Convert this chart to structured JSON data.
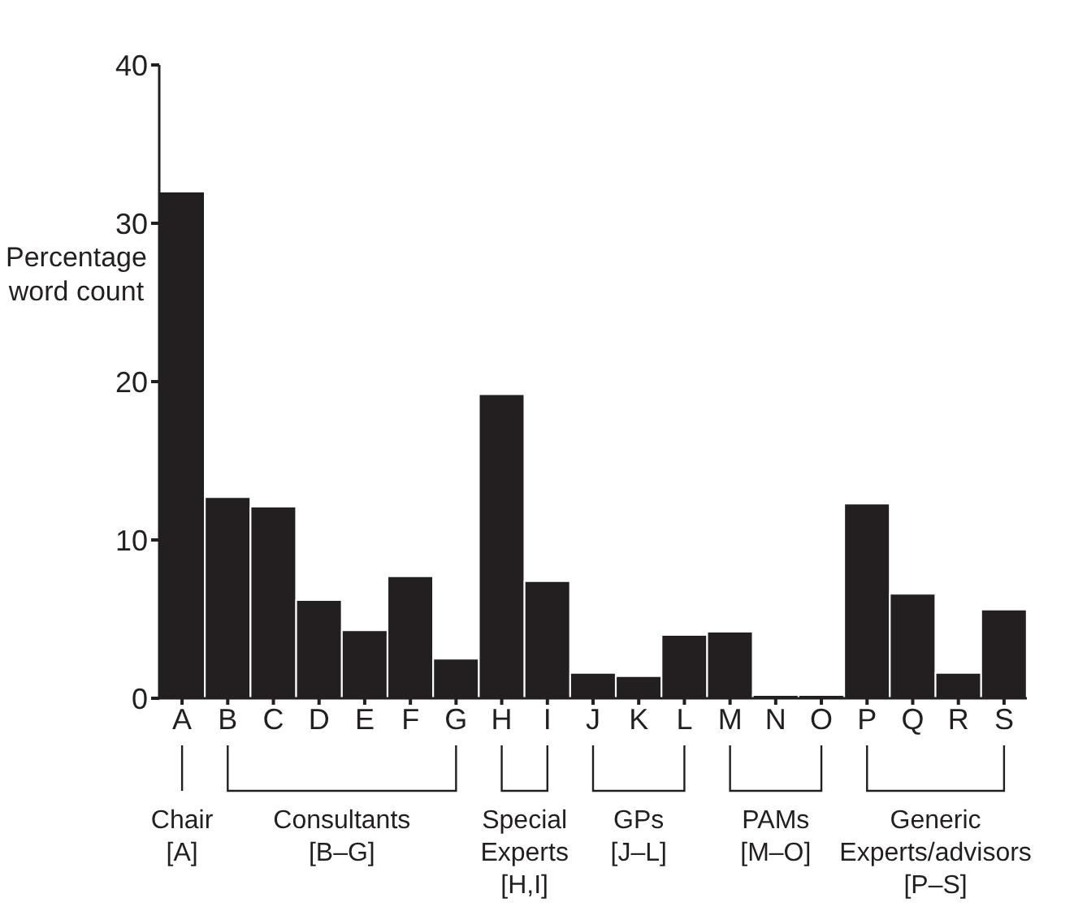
{
  "chart_data": {
    "type": "bar",
    "ylabel": "Percentage word count",
    "categories": [
      "A",
      "B",
      "C",
      "D",
      "E",
      "F",
      "G",
      "H",
      "I",
      "J",
      "K",
      "L",
      "M",
      "N",
      "O",
      "P",
      "Q",
      "R",
      "S"
    ],
    "values": [
      32,
      12.7,
      12.1,
      6.2,
      4.3,
      7.7,
      2.5,
      19.2,
      7.4,
      1.6,
      1.4,
      4.0,
      4.2,
      0.2,
      0.2,
      12.3,
      6.6,
      1.6,
      5.6
    ],
    "color": "#231f20",
    "ylim": [
      0,
      40
    ],
    "yticks": [
      0,
      10,
      20,
      30,
      40
    ],
    "grid": false,
    "legend": false,
    "annotations": [
      "Chair\n[A]",
      "Consultants\n[B–G]",
      "Special\nExperts\n[H,I]",
      "GPs\n[J–L]",
      "PAMs\n[M–O]",
      "Generic\nExperts/advisors\n[P–S]"
    ]
  }
}
